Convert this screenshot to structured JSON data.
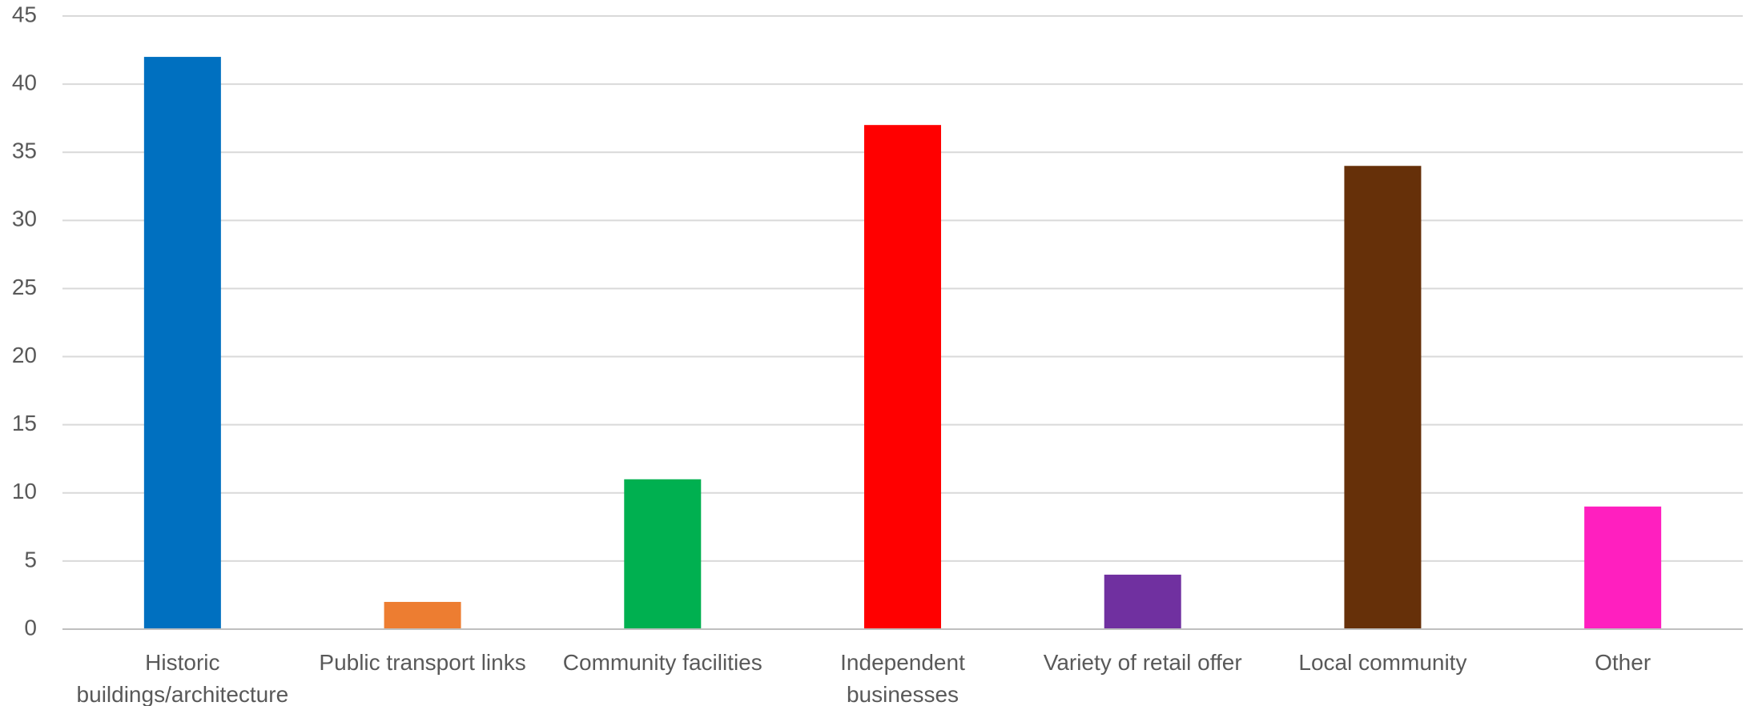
{
  "chart_data": {
    "type": "bar",
    "title": "",
    "xlabel": "",
    "ylabel": "",
    "categories": [
      "Historic buildings/architecture",
      "Public transport links",
      "Community facilities",
      "Independent businesses",
      "Variety of retail offer",
      "Local community",
      "Other"
    ],
    "category_label_lines": [
      [
        "Historic",
        "buildings/architecture"
      ],
      [
        "Public transport links"
      ],
      [
        "Community facilities"
      ],
      [
        "Independent",
        "businesses"
      ],
      [
        "Variety of retail offer"
      ],
      [
        "Local community"
      ],
      [
        "Other"
      ]
    ],
    "values": [
      42,
      2,
      11,
      37,
      4,
      34,
      9
    ],
    "colors": [
      "#0070c0",
      "#ed7d31",
      "#00b050",
      "#ff0000",
      "#7030a0",
      "#663009",
      "#ff1fbf"
    ],
    "ylim": [
      0,
      45
    ],
    "yticks": [
      "0",
      "5",
      "10",
      "15",
      "20",
      "25",
      "30",
      "35",
      "40",
      "45"
    ],
    "grid": true,
    "legend": "none"
  }
}
